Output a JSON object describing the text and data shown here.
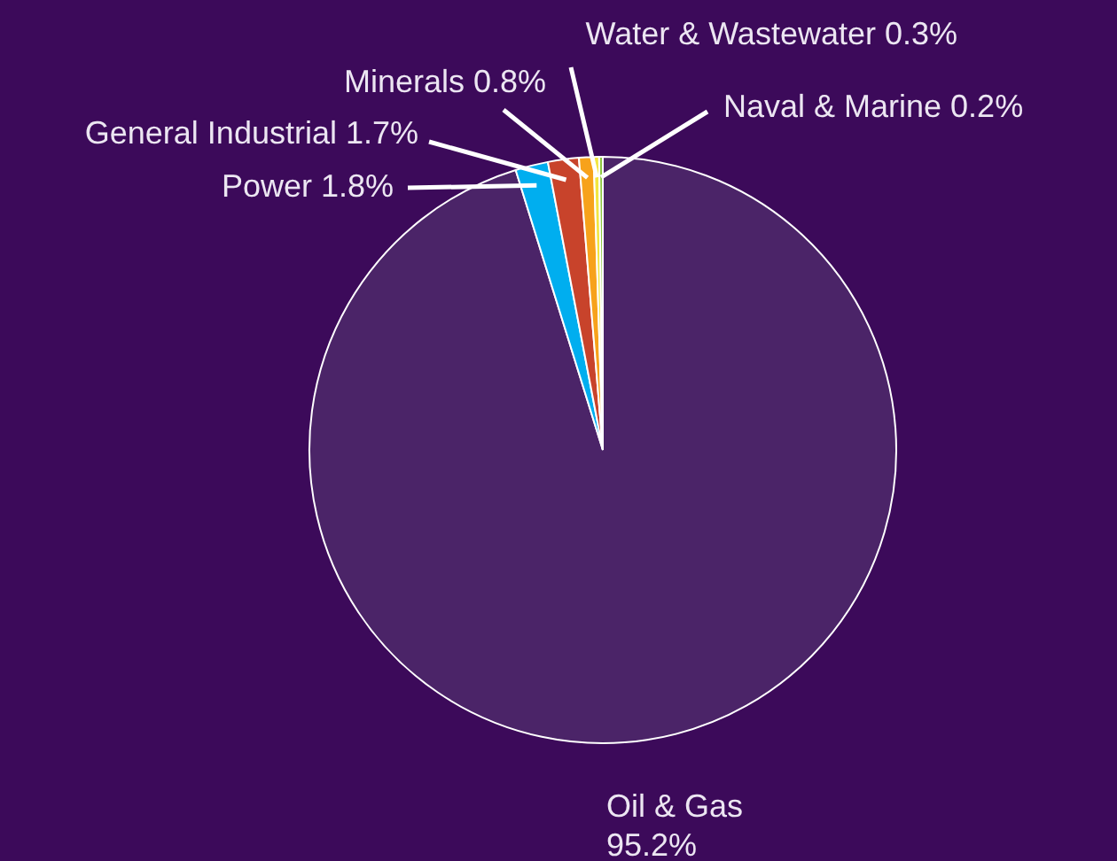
{
  "chart_data": {
    "type": "pie",
    "categories": [
      "Oil & Gas",
      "Power",
      "General Industrial",
      "Minerals",
      "Water & Wastewater",
      "Naval & Marine"
    ],
    "values": [
      95.2,
      1.8,
      1.7,
      0.8,
      0.3,
      0.2
    ],
    "colors": [
      "#4b2468",
      "#00aeef",
      "#c8432b",
      "#f7a21b",
      "#f2e640",
      "#8dc63f"
    ],
    "value_labels": [
      "95.2%",
      "1.8%",
      "1.7%",
      "0.8%",
      "0.3%",
      "0.2%"
    ],
    "legend": false
  }
}
